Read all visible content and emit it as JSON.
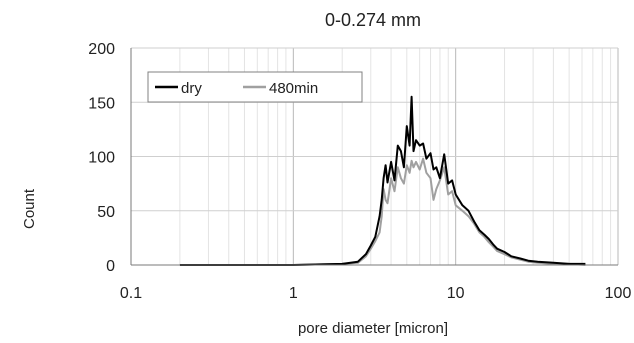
{
  "chart_data": {
    "type": "line",
    "title": "0-0.274 mm",
    "xlabel": "pore diameter [micron]",
    "ylabel": "Count",
    "x_scale": "log",
    "xlim": [
      0.1,
      100
    ],
    "ylim": [
      0,
      200
    ],
    "x_ticks": [
      0.1,
      1,
      10,
      100
    ],
    "x_tick_labels": [
      "0.1",
      "1",
      "10",
      "100"
    ],
    "y_ticks": [
      0,
      50,
      100,
      150,
      200
    ],
    "y_tick_labels": [
      "0",
      "50",
      "100",
      "150",
      "200"
    ],
    "grid": {
      "major_y": true,
      "major_x": true,
      "minor_x": true
    },
    "legend": {
      "position": "top-left",
      "boxed": true
    },
    "series": [
      {
        "name": "dry",
        "color": "#000000",
        "x": [
          0.2,
          1.0,
          2.0,
          2.5,
          2.8,
          3.0,
          3.2,
          3.4,
          3.5,
          3.6,
          3.7,
          3.8,
          4.0,
          4.2,
          4.4,
          4.6,
          4.8,
          5.0,
          5.2,
          5.35,
          5.5,
          5.7,
          6.0,
          6.3,
          6.6,
          7.0,
          7.3,
          7.6,
          8.0,
          8.5,
          9.0,
          9.5,
          10.0,
          11.0,
          12.0,
          13.0,
          14.0,
          15.0,
          16.0,
          17.0,
          18.0,
          20.0,
          22.0,
          25.0,
          28.0,
          32.0,
          40.0,
          50.0,
          63.0
        ],
        "y": [
          0,
          0,
          1,
          3,
          10,
          18,
          26,
          45,
          60,
          80,
          92,
          76,
          95,
          78,
          110,
          105,
          90,
          128,
          110,
          155,
          105,
          115,
          110,
          112,
          98,
          103,
          88,
          90,
          80,
          102,
          75,
          78,
          65,
          55,
          50,
          40,
          32,
          28,
          24,
          19,
          15,
          12,
          8,
          6,
          4,
          3,
          2,
          1,
          1
        ]
      },
      {
        "name": "480min",
        "color": "#a0a0a0",
        "x": [
          0.4,
          1.0,
          2.0,
          2.5,
          2.8,
          3.0,
          3.2,
          3.4,
          3.5,
          3.6,
          3.7,
          3.8,
          4.0,
          4.2,
          4.4,
          4.6,
          4.8,
          5.0,
          5.2,
          5.35,
          5.5,
          5.7,
          6.0,
          6.3,
          6.6,
          7.0,
          7.3,
          7.6,
          8.0,
          8.5,
          9.0,
          9.5,
          10.0,
          11.0,
          12.0,
          13.0,
          14.0,
          15.0,
          16.0,
          17.0,
          18.0,
          20.0,
          22.0,
          25.0,
          28.0,
          32.0,
          40.0,
          50.0,
          63.0
        ],
        "y": [
          0,
          0,
          1,
          2,
          8,
          15,
          22,
          30,
          45,
          70,
          60,
          57,
          80,
          68,
          90,
          80,
          75,
          92,
          85,
          96,
          90,
          95,
          88,
          98,
          85,
          80,
          60,
          70,
          78,
          90,
          65,
          68,
          55,
          50,
          45,
          38,
          30,
          26,
          21,
          17,
          13,
          10,
          7,
          5,
          3,
          2,
          1,
          1,
          0
        ]
      }
    ]
  }
}
